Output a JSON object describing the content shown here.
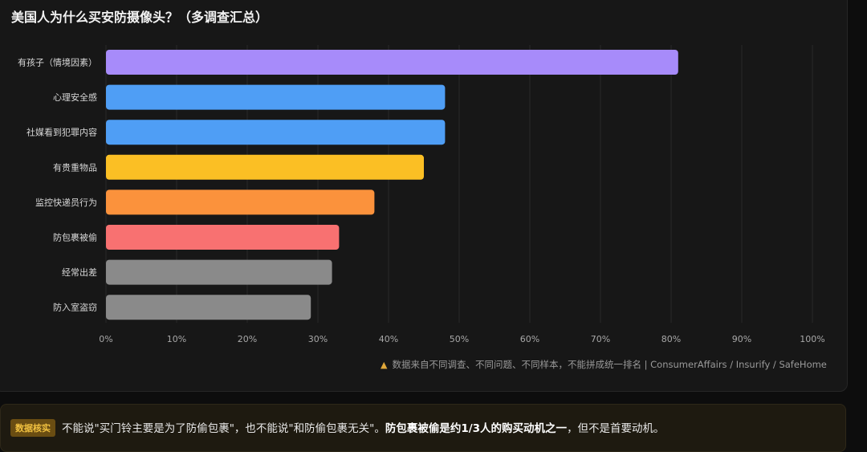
{
  "chart_data": {
    "type": "bar",
    "orientation": "horizontal",
    "title": "美国人为什么买安防摄像头？（多调查汇总）",
    "categories": [
      "有孩子（情境因素）",
      "心理安全感",
      "社媒看到犯罪内容",
      "有贵重物品",
      "监控快递员行为",
      "防包裹被偷",
      "经常出差",
      "防入室盗窃"
    ],
    "values": [
      81,
      48,
      48,
      45,
      38,
      33,
      32,
      29
    ],
    "colors": [
      "#a78bfa",
      "#4f9ef5",
      "#4f9ef5",
      "#fbbf24",
      "#fb923c",
      "#f87171",
      "#8a8a8a",
      "#8a8a8a"
    ],
    "xlim": [
      0,
      100
    ],
    "xticks": [
      "0%",
      "10%",
      "20%",
      "30%",
      "40%",
      "50%",
      "60%",
      "70%",
      "80%",
      "90%",
      "100%"
    ],
    "grid": true
  },
  "note": {
    "icon": "warning-icon",
    "text": "数据来自不同调查、不同问题、不同样本，不能拼成统一排名 | ConsumerAffairs / Insurify / SafeHome"
  },
  "callout": {
    "badge": "数据核实",
    "text_1": "不能说\"买门铃主要是为了防偷包裹\"，也不能说\"和防偷包裹无关\"。",
    "text_bold": "防包裹被偷是约1/3人的购买动机之一",
    "text_2": "，但不是首要动机。"
  }
}
